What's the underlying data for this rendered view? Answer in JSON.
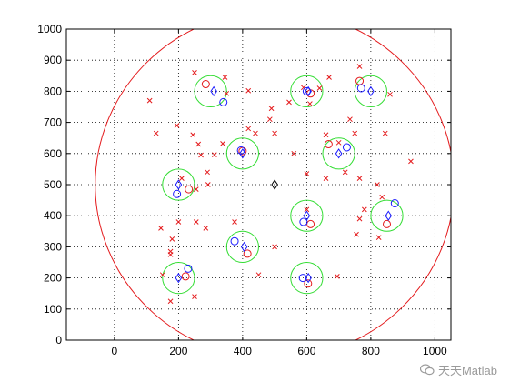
{
  "chart_data": {
    "type": "scatter",
    "title": "",
    "xlabel": "",
    "ylabel": "",
    "xlim": [
      -150,
      1050
    ],
    "ylim": [
      0,
      1000
    ],
    "xticks": [
      0,
      200,
      400,
      600,
      800,
      1000
    ],
    "yticks": [
      0,
      100,
      200,
      300,
      400,
      500,
      600,
      700,
      800,
      900,
      1000
    ],
    "grid": true,
    "legend": "none",
    "colors": {
      "red": "#e41a1c",
      "blue": "#1a1aff",
      "green": "#33dd33",
      "black": "#000000",
      "axis": "#000000"
    },
    "boundary_circle": {
      "cx": 500,
      "cy": 500,
      "r": 560
    },
    "center_marker": {
      "x": 500,
      "y": 500
    },
    "cluster_centers": [
      {
        "x": 300,
        "y": 800
      },
      {
        "x": 600,
        "y": 800
      },
      {
        "x": 800,
        "y": 800
      },
      {
        "x": 400,
        "y": 600
      },
      {
        "x": 700,
        "y": 600
      },
      {
        "x": 200,
        "y": 500
      },
      {
        "x": 600,
        "y": 400
      },
      {
        "x": 850,
        "y": 400
      },
      {
        "x": 400,
        "y": 300
      },
      {
        "x": 200,
        "y": 200
      },
      {
        "x": 600,
        "y": 200
      }
    ],
    "cluster_radius": 50,
    "blue_diamonds": [
      {
        "x": 310,
        "y": 800
      },
      {
        "x": 605,
        "y": 800
      },
      {
        "x": 800,
        "y": 800
      },
      {
        "x": 400,
        "y": 600
      },
      {
        "x": 700,
        "y": 600
      },
      {
        "x": 200,
        "y": 500
      },
      {
        "x": 600,
        "y": 400
      },
      {
        "x": 855,
        "y": 400
      },
      {
        "x": 405,
        "y": 300
      },
      {
        "x": 200,
        "y": 200
      },
      {
        "x": 605,
        "y": 200
      }
    ],
    "blue_circles": [
      {
        "x": 340,
        "y": 765
      },
      {
        "x": 600,
        "y": 800
      },
      {
        "x": 770,
        "y": 810
      },
      {
        "x": 395,
        "y": 610
      },
      {
        "x": 725,
        "y": 620
      },
      {
        "x": 195,
        "y": 470
      },
      {
        "x": 590,
        "y": 380
      },
      {
        "x": 875,
        "y": 440
      },
      {
        "x": 375,
        "y": 318
      },
      {
        "x": 230,
        "y": 230
      },
      {
        "x": 588,
        "y": 200
      }
    ],
    "red_circles": [
      {
        "x": 285,
        "y": 823
      },
      {
        "x": 612,
        "y": 793
      },
      {
        "x": 765,
        "y": 833
      },
      {
        "x": 400,
        "y": 608
      },
      {
        "x": 668,
        "y": 630
      },
      {
        "x": 232,
        "y": 485
      },
      {
        "x": 612,
        "y": 373
      },
      {
        "x": 850,
        "y": 373
      },
      {
        "x": 415,
        "y": 278
      },
      {
        "x": 222,
        "y": 205
      },
      {
        "x": 604,
        "y": 182
      }
    ],
    "red_crosses": [
      {
        "x": 250,
        "y": 860
      },
      {
        "x": 345,
        "y": 845
      },
      {
        "x": 350,
        "y": 793
      },
      {
        "x": 418,
        "y": 802
      },
      {
        "x": 110,
        "y": 770
      },
      {
        "x": 545,
        "y": 765
      },
      {
        "x": 590,
        "y": 812
      },
      {
        "x": 670,
        "y": 845
      },
      {
        "x": 765,
        "y": 880
      },
      {
        "x": 735,
        "y": 710
      },
      {
        "x": 860,
        "y": 790
      },
      {
        "x": 845,
        "y": 665
      },
      {
        "x": 130,
        "y": 665
      },
      {
        "x": 195,
        "y": 690
      },
      {
        "x": 245,
        "y": 660
      },
      {
        "x": 262,
        "y": 630
      },
      {
        "x": 270,
        "y": 595
      },
      {
        "x": 312,
        "y": 596
      },
      {
        "x": 338,
        "y": 632
      },
      {
        "x": 418,
        "y": 680
      },
      {
        "x": 440,
        "y": 665
      },
      {
        "x": 500,
        "y": 665
      },
      {
        "x": 485,
        "y": 710
      },
      {
        "x": 490,
        "y": 745
      },
      {
        "x": 560,
        "y": 600
      },
      {
        "x": 660,
        "y": 660
      },
      {
        "x": 700,
        "y": 635
      },
      {
        "x": 925,
        "y": 575
      },
      {
        "x": 750,
        "y": 665
      },
      {
        "x": 720,
        "y": 540
      },
      {
        "x": 765,
        "y": 520
      },
      {
        "x": 820,
        "y": 500
      },
      {
        "x": 210,
        "y": 520
      },
      {
        "x": 290,
        "y": 540
      },
      {
        "x": 292,
        "y": 500
      },
      {
        "x": 255,
        "y": 485
      },
      {
        "x": 600,
        "y": 535
      },
      {
        "x": 660,
        "y": 520
      },
      {
        "x": 835,
        "y": 460
      },
      {
        "x": 780,
        "y": 420
      },
      {
        "x": 765,
        "y": 390
      },
      {
        "x": 755,
        "y": 340
      },
      {
        "x": 825,
        "y": 330
      },
      {
        "x": 145,
        "y": 360
      },
      {
        "x": 200,
        "y": 380
      },
      {
        "x": 180,
        "y": 325
      },
      {
        "x": 175,
        "y": 285
      },
      {
        "x": 255,
        "y": 380
      },
      {
        "x": 285,
        "y": 360
      },
      {
        "x": 375,
        "y": 380
      },
      {
        "x": 500,
        "y": 300
      },
      {
        "x": 450,
        "y": 210
      },
      {
        "x": 695,
        "y": 205
      },
      {
        "x": 150,
        "y": 210
      },
      {
        "x": 175,
        "y": 125
      },
      {
        "x": 250,
        "y": 140
      },
      {
        "x": 175,
        "y": 275
      },
      {
        "x": 600,
        "y": 420
      },
      {
        "x": 610,
        "y": 760
      },
      {
        "x": 640,
        "y": 810
      }
    ]
  },
  "watermark": {
    "text": "天天Matlab",
    "icon": "wechat-icon"
  }
}
